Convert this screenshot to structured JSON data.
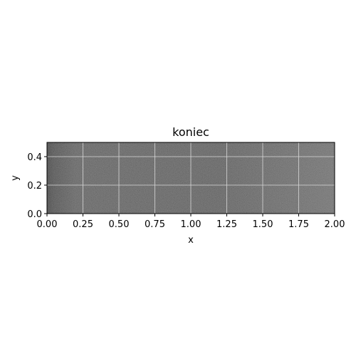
{
  "chart_data": {
    "type": "heatmap",
    "title": "koniec",
    "xlabel": "x",
    "ylabel": "y",
    "xlim": [
      0.0,
      2.0
    ],
    "ylim": [
      0.0,
      0.5
    ],
    "x_ticks": [
      "0.00",
      "0.25",
      "0.50",
      "0.75",
      "1.00",
      "1.25",
      "1.50",
      "1.75",
      "2.00"
    ],
    "x_tick_values": [
      0.0,
      0.25,
      0.5,
      0.75,
      1.0,
      1.25,
      1.5,
      1.75,
      2.0
    ],
    "y_ticks": [
      "0.0",
      "0.2",
      "0.4"
    ],
    "y_tick_values": [
      0.0,
      0.2,
      0.4
    ],
    "grid": true,
    "colormap": "gray",
    "field_description": "noisy dark grayscale field, darkest near x=0, slightly lighter near x=2",
    "colors": {
      "grid": "#d9d9d9",
      "background_dark": "#1a1a1a",
      "background_light": "#3a3a3a"
    }
  }
}
